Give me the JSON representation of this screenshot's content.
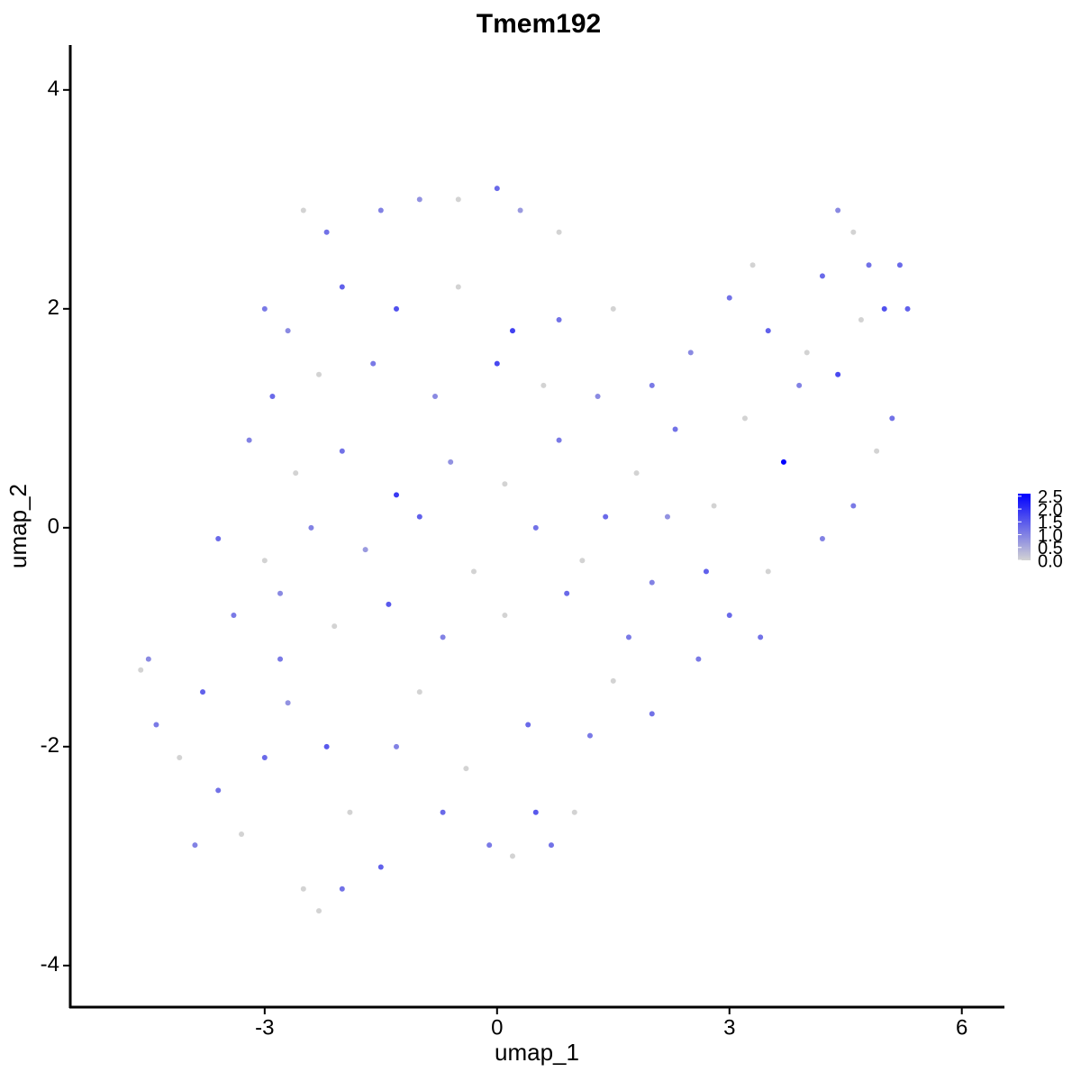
{
  "chart_data": {
    "type": "scatter",
    "title": "Tmem192",
    "x_label": "umap_1",
    "y_label": "umap_2",
    "xlim": [
      -5.51,
      6.55
    ],
    "ylim": [
      -4.38,
      4.41
    ],
    "xticks": [
      -3,
      0,
      3,
      6
    ],
    "yticks": [
      -4,
      -2,
      0,
      2,
      4
    ],
    "x": [
      -2.5,
      -2.2,
      -1.5,
      -1.0,
      -0.5,
      0.0,
      0.3,
      0.8,
      -3.0,
      -2.7,
      -2.0,
      -1.3,
      -0.5,
      0.2,
      0.8,
      -2.9,
      -2.3,
      -1.6,
      -0.8,
      0.0,
      0.6,
      -3.2,
      -2.6,
      -2.0,
      -1.3,
      -0.6,
      0.1,
      0.8,
      -3.6,
      -3.0,
      -2.4,
      -1.7,
      -1.0,
      -0.3,
      0.5,
      -3.4,
      -2.8,
      -2.1,
      -1.4,
      -0.7,
      0.1,
      0.9,
      -4.6,
      -4.5,
      -4.4,
      -4.1,
      -3.8,
      -3.6,
      -3.3,
      -3.0,
      -2.7,
      -2.5,
      -2.3,
      -2.0,
      -1.9,
      -1.5,
      -1.3,
      -1.0,
      -0.7,
      -0.4,
      -0.1,
      0.2,
      0.5,
      0.7,
      1.0,
      -2.8,
      -3.9,
      -2.2,
      0.4,
      1.2,
      1.5,
      2.0,
      1.5,
      2.0,
      2.5,
      3.0,
      3.3,
      3.5,
      3.9,
      4.2,
      4.4,
      4.6,
      4.8,
      5.0,
      5.3,
      5.1,
      4.9,
      4.6,
      4.2,
      3.7,
      3.5,
      3.0,
      2.6,
      2.8,
      2.3,
      1.8,
      1.4,
      1.1,
      2.0,
      3.4,
      4.0,
      4.4,
      3.2,
      2.7,
      1.3,
      1.7,
      5.2,
      4.7,
      2.2
    ],
    "y": [
      2.9,
      2.7,
      2.9,
      3.0,
      3.0,
      3.1,
      2.9,
      2.7,
      2.0,
      1.8,
      2.2,
      2.0,
      2.2,
      1.8,
      1.9,
      1.2,
      1.4,
      1.5,
      1.2,
      1.5,
      1.3,
      0.8,
      0.5,
      0.7,
      0.3,
      0.6,
      0.4,
      0.8,
      -0.1,
      -0.3,
      0.0,
      -0.2,
      0.1,
      -0.4,
      0.0,
      -0.8,
      -0.6,
      -0.9,
      -0.7,
      -1.0,
      -0.8,
      -0.6,
      -1.3,
      -1.2,
      -1.8,
      -2.1,
      -1.5,
      -2.4,
      -2.8,
      -2.1,
      -1.6,
      -3.3,
      -3.5,
      -3.3,
      -2.6,
      -3.1,
      -2.0,
      -1.5,
      -2.6,
      -2.2,
      -2.9,
      -3.0,
      -2.6,
      -2.9,
      -2.6,
      -1.2,
      -2.9,
      -2.0,
      -1.8,
      -1.9,
      -1.4,
      -1.7,
      2.0,
      1.3,
      1.6,
      2.1,
      2.4,
      1.8,
      1.3,
      2.3,
      2.9,
      2.7,
      2.4,
      2.0,
      2.0,
      1.0,
      0.7,
      0.2,
      -0.1,
      0.6,
      -0.4,
      -0.8,
      -1.2,
      0.2,
      0.9,
      0.5,
      0.1,
      -0.3,
      -0.5,
      -1.0,
      1.6,
      1.4,
      1.0,
      -0.4,
      1.2,
      -1.0,
      2.4,
      1.9,
      0.1
    ],
    "color_values": [
      0,
      1.2,
      1.0,
      0.8,
      0,
      1.3,
      0.7,
      0,
      1.1,
      0.9,
      1.4,
      1.6,
      0,
      1.8,
      1.2,
      1.3,
      0,
      1.1,
      0.9,
      1.7,
      0,
      1.0,
      0,
      1.2,
      1.9,
      0.8,
      0,
      1.1,
      1.3,
      0,
      1.0,
      0.7,
      1.4,
      0,
      1.2,
      1.1,
      0.9,
      0,
      1.5,
      1.0,
      0,
      1.3,
      0,
      0.9,
      1.1,
      0,
      1.4,
      1.2,
      0,
      1.3,
      0.8,
      0,
      0,
      1.2,
      0,
      1.4,
      1.0,
      0,
      1.3,
      0,
      1.1,
      0,
      1.5,
      1.2,
      0,
      1.1,
      1.0,
      1.5,
      1.3,
      1.1,
      0,
      1.2,
      0,
      1.1,
      0.9,
      1.2,
      0,
      1.4,
      1.0,
      1.3,
      0.9,
      0,
      1.2,
      1.6,
      1.4,
      1.2,
      0,
      1.1,
      1.0,
      2.6,
      0,
      1.3,
      1.1,
      0,
      1.2,
      0,
      1.3,
      0,
      1.0,
      1.2,
      0,
      1.7,
      0,
      1.4,
      0.9,
      1.1,
      1.3,
      0,
      0.8
    ],
    "colorscale": {
      "low": "#d3d3d3",
      "high": "#0000ff",
      "lim": [
        0,
        2.6
      ],
      "ticks": [
        {
          "value": 0,
          "label": "0.0"
        },
        0.5,
        {
          "value": 1,
          "label": "1.0"
        },
        1.5,
        {
          "value": 2,
          "label": "2.0"
        },
        2.5
      ]
    }
  }
}
